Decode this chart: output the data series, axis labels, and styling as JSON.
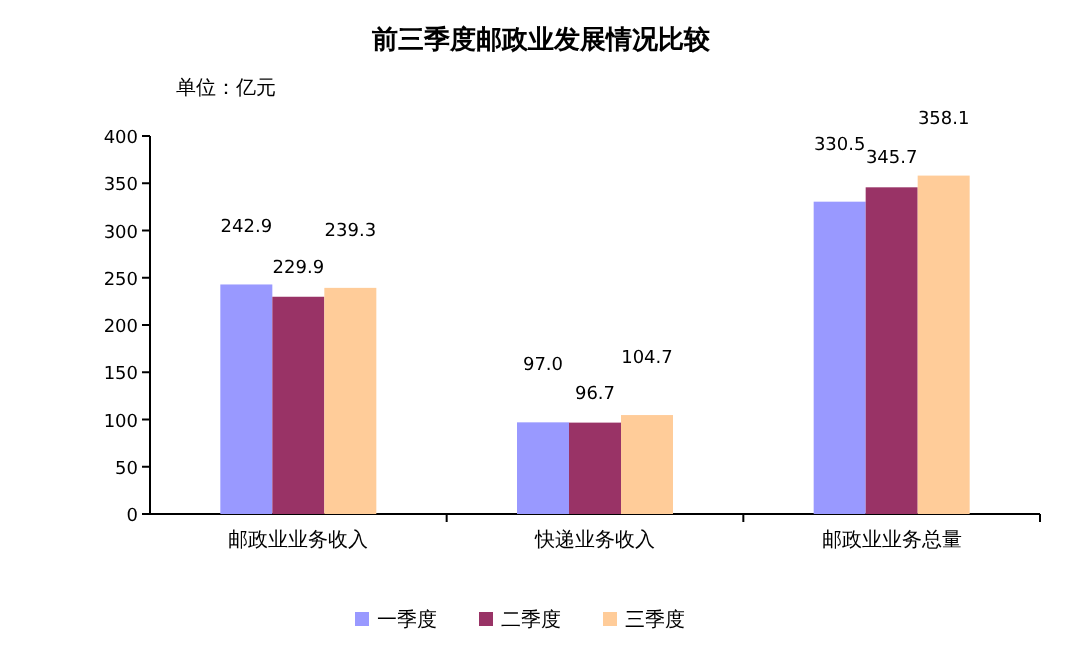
{
  "chart_data": {
    "type": "bar",
    "title": "前三季度邮政业发展情况比较",
    "annotations": [
      "单位：亿元"
    ],
    "categories": [
      "邮政业业务收入",
      "快递业务收入",
      "邮政业业务总量"
    ],
    "series": [
      {
        "name": "一季度",
        "color": "#9999ff",
        "values": [
          242.9,
          97.0,
          330.5
        ],
        "value_labels": [
          "242.9",
          "97.0",
          "330.5"
        ]
      },
      {
        "name": "二季度",
        "color": "#993366",
        "values": [
          229.9,
          96.7,
          345.7
        ],
        "value_labels": [
          "229.9",
          "96.7",
          "345.7"
        ]
      },
      {
        "name": "三季度",
        "color": "#ffcc99",
        "values": [
          239.3,
          104.7,
          358.1
        ],
        "value_labels": [
          "239.3",
          "104.7",
          "358.1"
        ]
      }
    ],
    "ylim": [
      0,
      400
    ],
    "yticks": [
      0,
      50,
      100,
      150,
      200,
      250,
      300,
      350,
      400
    ],
    "legend": "bottom"
  }
}
